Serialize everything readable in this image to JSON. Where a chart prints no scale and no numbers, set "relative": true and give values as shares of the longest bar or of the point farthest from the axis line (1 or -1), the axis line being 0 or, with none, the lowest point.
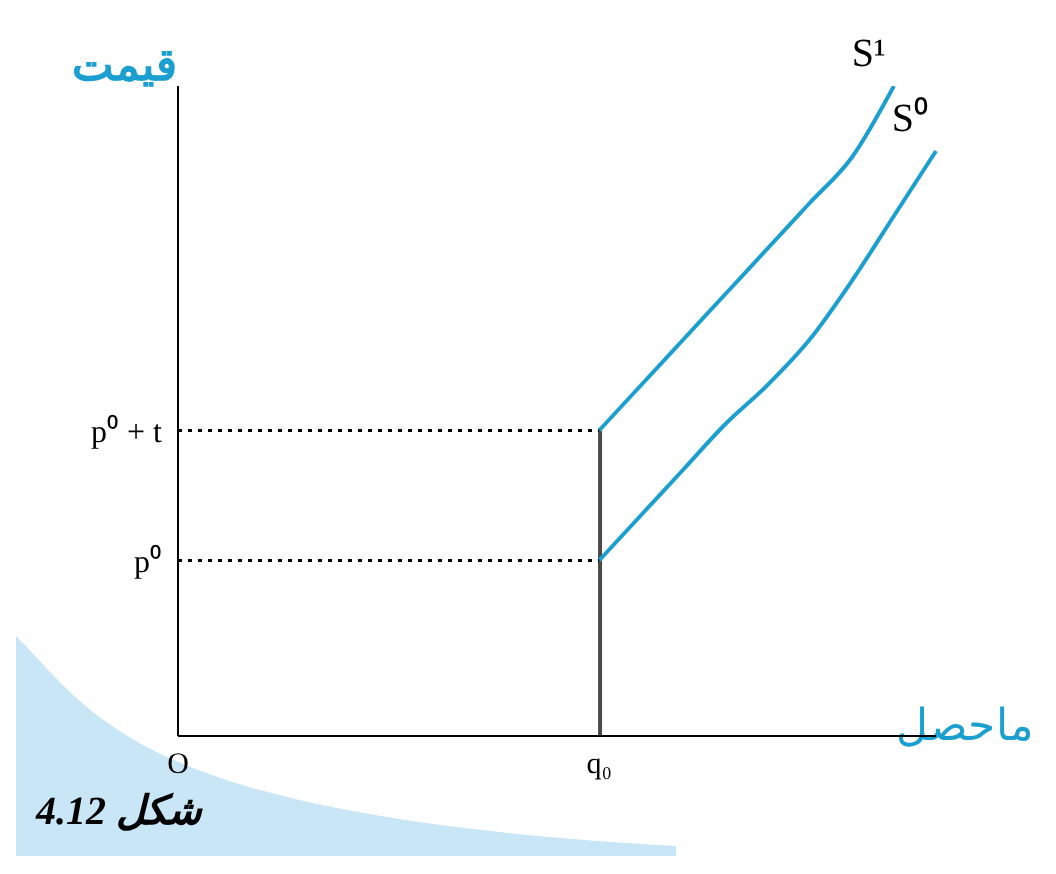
{
  "chart_data": {
    "type": "line",
    "relative": true,
    "xlabel": "ماحصل",
    "ylabel": "قیمت",
    "marker": "none",
    "annotations": [
      {
        "text": "p⁰",
        "x": "O",
        "y": 0.27
      },
      {
        "text": "p⁰ + t",
        "x": "O",
        "y": 0.47
      },
      "شکل 4.12"
    ],
    "categories": [
      "O",
      null,
      null,
      null,
      null,
      null,
      null,
      null,
      null,
      null,
      "q₀",
      null,
      null,
      null,
      null,
      null,
      null,
      null,
      null
    ],
    "series": [
      {
        "name": "S¹",
        "color": "#1a9fd0",
        "values": [
          null,
          null,
          null,
          null,
          null,
          null,
          null,
          null,
          null,
          null,
          0.47,
          0.54,
          0.61,
          0.68,
          0.75,
          0.82,
          0.89,
          1.0,
          null
        ]
      },
      {
        "name": "S⁰",
        "color": "#1a9fd0",
        "values": [
          null,
          null,
          null,
          null,
          null,
          null,
          null,
          null,
          null,
          null,
          0.27,
          0.34,
          0.41,
          0.48,
          0.54,
          0.61,
          0.7,
          0.8,
          0.9
        ]
      },
      {
        "type": "bar",
        "color": "#4a4a4a",
        "values": [
          null,
          null,
          null,
          null,
          null,
          null,
          null,
          null,
          null,
          null,
          0.47,
          null,
          null,
          null,
          null,
          null,
          null,
          null,
          null
        ]
      },
      {
        "color": "#000000",
        "line_style": "dotted",
        "values": [
          0.47,
          0.47,
          0.47,
          0.47,
          0.47,
          0.47,
          0.47,
          0.47,
          0.47,
          0.47,
          0.47,
          null,
          null,
          null,
          null,
          null,
          null,
          null,
          null
        ]
      },
      {
        "color": "#000000",
        "line_style": "dotted",
        "values": [
          0.27,
          0.27,
          0.27,
          0.27,
          0.27,
          0.27,
          0.27,
          0.27,
          0.27,
          0.27,
          0.27,
          null,
          null,
          null,
          null,
          null,
          null,
          null,
          null
        ]
      }
    ]
  }
}
